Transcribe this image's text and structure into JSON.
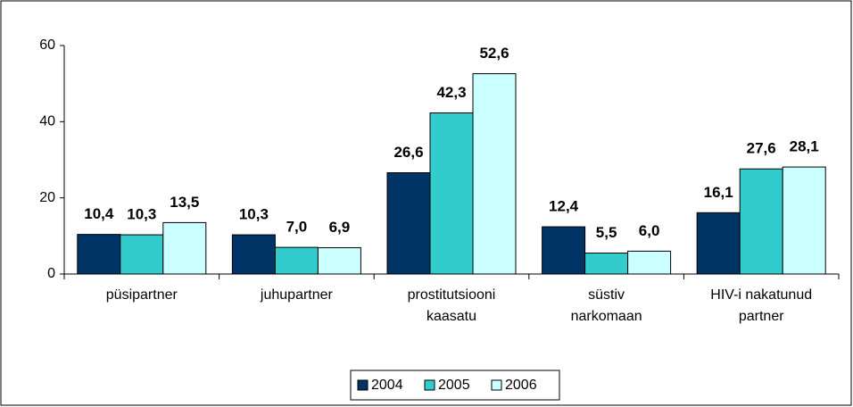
{
  "chart_data": {
    "type": "bar",
    "categories": [
      [
        "püsipartner"
      ],
      [
        "juhupartner"
      ],
      [
        "prostitutsiooni",
        "kaasatu"
      ],
      [
        "süstiv",
        "narkomaan"
      ],
      [
        "HIV-i nakatunud",
        "partner"
      ]
    ],
    "series": [
      {
        "name": "2004",
        "color": "#003366",
        "values": [
          10.4,
          10.3,
          26.6,
          12.4,
          16.1
        ],
        "value_labels": [
          "10,4",
          "10,3",
          "26,6",
          "12,4",
          "16,1"
        ]
      },
      {
        "name": "2005",
        "color": "#33cccc",
        "values": [
          10.3,
          7.0,
          42.3,
          5.5,
          27.6
        ],
        "value_labels": [
          "10,3",
          "7,0",
          "42,3",
          "5,5",
          "27,6"
        ]
      },
      {
        "name": "2006",
        "color": "#ccffff",
        "values": [
          13.5,
          6.9,
          52.6,
          6.0,
          28.1
        ],
        "value_labels": [
          "13,5",
          "6,9",
          "52,6",
          "6,0",
          "28,1"
        ]
      }
    ],
    "ylim": [
      0,
      60
    ],
    "yticks": [
      0,
      20,
      40,
      60
    ],
    "legend": "bottom"
  }
}
